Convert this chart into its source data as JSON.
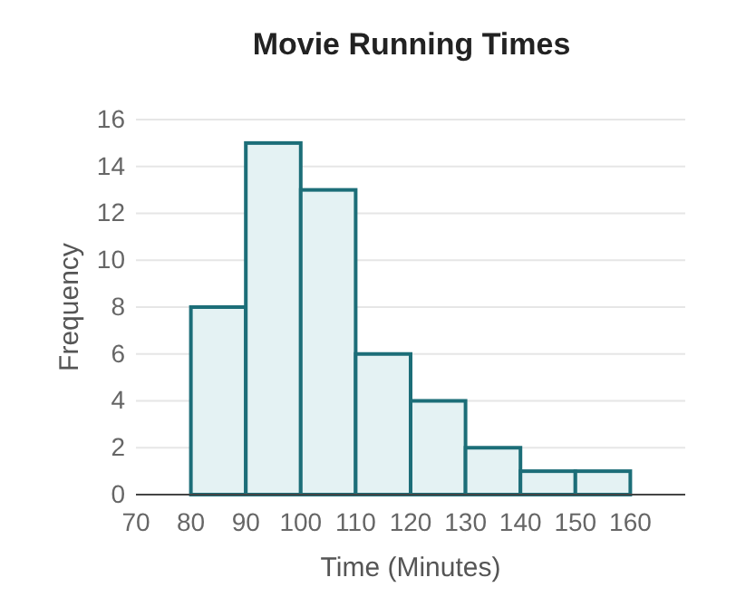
{
  "chart_data": {
    "type": "histogram",
    "title": "Movie Running Times",
    "xlabel": "Time (Minutes)",
    "ylabel": "Frequency",
    "bins": [
      80,
      90,
      100,
      110,
      120,
      130,
      140,
      150,
      160
    ],
    "values": [
      8,
      15,
      13,
      6,
      4,
      2,
      1,
      1
    ],
    "color": "#e4f2f3",
    "xlim": [
      70,
      170
    ],
    "xticks": [
      70,
      80,
      90,
      100,
      110,
      120,
      130,
      140,
      150,
      160
    ],
    "ylim": [
      0,
      16
    ],
    "yticks": [
      0,
      2,
      4,
      6,
      8,
      10,
      12,
      14,
      16
    ],
    "grid": "y"
  }
}
